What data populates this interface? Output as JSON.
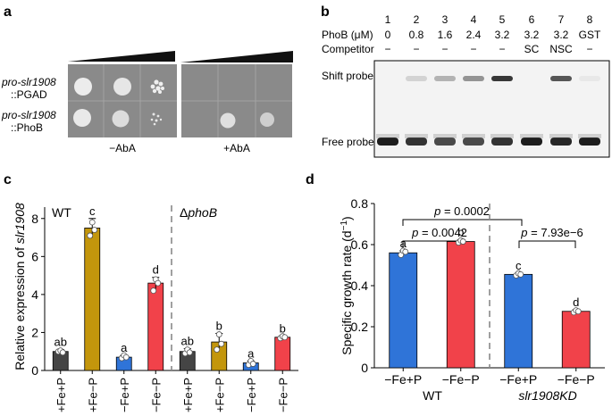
{
  "panels": {
    "a": {
      "letter": "a",
      "row1_label_italic": "pro-slr1908",
      "row1_label_plain": "::PGAD",
      "row2_label_italic": "pro-slr1908",
      "row2_label_plain": "::PhoB",
      "plate_left_label": "−AbA",
      "plate_right_label": "+AbA",
      "plate_color": "#8a8a8a"
    },
    "b": {
      "letter": "b",
      "lanes": [
        "1",
        "2",
        "3",
        "4",
        "5",
        "6",
        "7",
        "8"
      ],
      "phob_label": "PhoB (μM)",
      "phob_values": [
        "0",
        "0.8",
        "1.6",
        "2.4",
        "3.2",
        "3.2",
        "3.2",
        "GST"
      ],
      "competitor_label": "Competitor",
      "competitor_values": [
        "−",
        "−",
        "−",
        "−",
        "−",
        "SC",
        "NSC",
        "−"
      ],
      "shift_probe_label": "Shift probe",
      "free_probe_label": "Free probe"
    },
    "c": {
      "letter": "c",
      "wt_label": "WT",
      "mutant_prefix": "Δ",
      "mutant_gene": "phoB"
    },
    "d": {
      "letter": "d",
      "p1_prefix": "p",
      "p1_value": " = 0.0002",
      "p2_prefix": "p",
      "p2_value": " = 0.0042",
      "p3_prefix": "p",
      "p3_value": " = 7.93e−6",
      "group1_label": "WT",
      "group2_label": "slr1908KD"
    }
  },
  "chart_data": [
    {
      "type": "bar",
      "panel": "c",
      "ylabel_prefix": "Relative expression of ",
      "ylabel_gene": "slr1908",
      "categories": [
        "+Fe+P",
        "+Fe−P",
        "−Fe+P",
        "−Fe−P",
        "+Fe+P",
        "+Fe−P",
        "−Fe+P",
        "−Fe−P"
      ],
      "values": [
        1.0,
        7.5,
        0.7,
        4.6,
        1.0,
        1.5,
        0.4,
        1.75
      ],
      "errors": [
        0.1,
        0.5,
        0.1,
        0.3,
        0.15,
        0.45,
        0.1,
        0.05
      ],
      "letters": [
        "ab",
        "c",
        "a",
        "d",
        "ab",
        "b",
        "a",
        "b"
      ],
      "colors": [
        "#454545",
        "#c3960c",
        "#2f74d8",
        "#f1424a",
        "#454545",
        "#c3960c",
        "#2f74d8",
        "#f1424a"
      ],
      "points": [
        [
          1.0,
          1.05,
          0.95
        ],
        [
          7.1,
          7.8,
          7.4
        ],
        [
          0.65,
          0.8,
          0.7
        ],
        [
          4.2,
          4.8,
          4.6
        ],
        [
          0.9,
          1.1,
          0.95
        ],
        [
          1.1,
          1.9,
          1.4
        ],
        [
          0.3,
          0.5,
          0.35
        ],
        [
          1.7,
          1.8,
          1.75
        ]
      ],
      "yticks": [
        "0",
        "2",
        "4",
        "6",
        "8"
      ],
      "ylim": [
        0,
        8.6
      ],
      "group_split": 4
    },
    {
      "type": "bar",
      "panel": "d",
      "ylabel": "Specific growth rate (d",
      "ylabel_sup": "−1",
      "ylabel_end": ")",
      "categories": [
        "−Fe+P",
        "−Fe−P",
        "−Fe+P",
        "−Fe−P"
      ],
      "values": [
        0.56,
        0.615,
        0.455,
        0.275
      ],
      "errors": [
        0.01,
        0.008,
        0.005,
        0.008
      ],
      "letters": [
        "a",
        "b",
        "c",
        "d"
      ],
      "colors": [
        "#2f74d8",
        "#f1424a",
        "#2f74d8",
        "#f1424a"
      ],
      "points": [
        [
          0.55,
          0.57,
          0.565
        ],
        [
          0.61,
          0.62,
          0.615
        ],
        [
          0.45,
          0.46,
          0.455
        ],
        [
          0.27,
          0.28,
          0.275
        ]
      ],
      "yticks": [
        "0",
        "0.2",
        "0.4",
        "0.6",
        "0.8"
      ],
      "ylim": [
        0,
        0.8
      ],
      "group_split": 2
    }
  ]
}
